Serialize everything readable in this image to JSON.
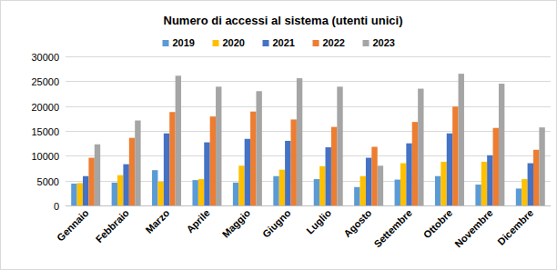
{
  "chart_data": {
    "type": "bar",
    "title": "Numero di accessi al sistema (utenti unici)",
    "categories": [
      "Gennaio",
      "Febbraio",
      "Marzo",
      "Aprile",
      "Maggio",
      "Giugno",
      "Luglio",
      "Agosto",
      "Settembre",
      "Ottobre",
      "Novembre",
      "Dicembre"
    ],
    "series": [
      {
        "name": "2019",
        "color": "#5b9bd5",
        "values": [
          4400,
          4600,
          7100,
          5100,
          4600,
          5900,
          5300,
          3700,
          5200,
          5900,
          4200,
          3400
        ]
      },
      {
        "name": "2020",
        "color": "#ffc000",
        "values": [
          4500,
          6100,
          4800,
          5300,
          8000,
          7200,
          7900,
          5900,
          8500,
          8800,
          8800,
          5300
        ]
      },
      {
        "name": "2021",
        "color": "#4472c4",
        "values": [
          5900,
          8300,
          14500,
          12700,
          13400,
          13000,
          11700,
          9600,
          12500,
          14500,
          10100,
          8500
        ]
      },
      {
        "name": "2022",
        "color": "#ed7d31",
        "values": [
          9600,
          13600,
          18800,
          17900,
          18900,
          17300,
          15800,
          11800,
          16800,
          19900,
          15600,
          11200
        ]
      },
      {
        "name": "2023",
        "color": "#a5a5a5",
        "values": [
          12300,
          17100,
          26100,
          23900,
          23000,
          25600,
          23900,
          8000,
          23500,
          26500,
          24500,
          15700
        ]
      }
    ],
    "ylim": [
      0,
      30000
    ],
    "yticks": [
      0,
      5000,
      10000,
      15000,
      20000,
      25000,
      30000
    ],
    "grid": true,
    "legend": "top"
  }
}
